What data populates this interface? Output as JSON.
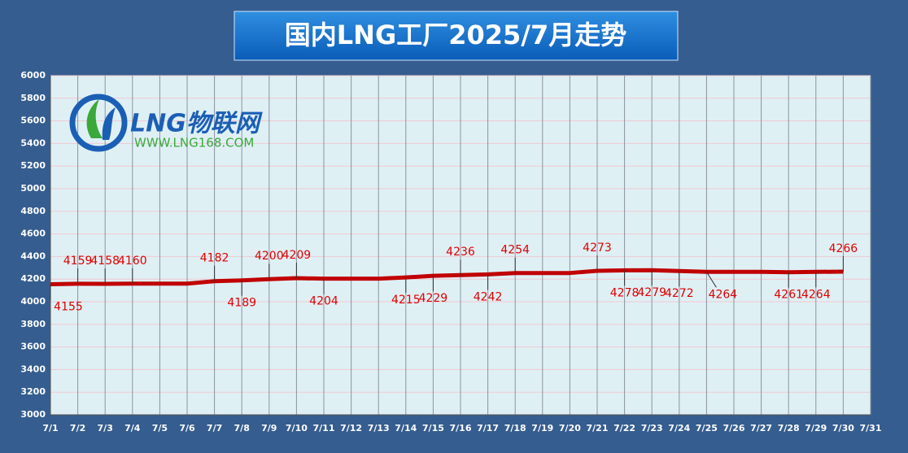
{
  "chart_data": {
    "type": "line",
    "title": "国内LNG工厂2025/7月走势",
    "logo": {
      "name": "LNG物联网",
      "url": "WWW.LNG168.COM"
    },
    "categories": [
      "7/1",
      "7/2",
      "7/3",
      "7/4",
      "7/5",
      "7/6",
      "7/7",
      "7/8",
      "7/9",
      "7/10",
      "7/11",
      "7/12",
      "7/13",
      "7/14",
      "7/15",
      "7/16",
      "7/17",
      "7/18",
      "7/19",
      "7/20",
      "7/21",
      "7/22",
      "7/23",
      "7/24",
      "7/25",
      "7/26",
      "7/27",
      "7/28",
      "7/29",
      "7/30",
      "7/31"
    ],
    "series": [
      {
        "color": "#c00000",
        "values": [
          4155,
          4159,
          4158,
          4160,
          4160,
          4160,
          4182,
          4189,
          4200,
          4209,
          4204,
          4204,
          4204,
          4215,
          4229,
          4236,
          4242,
          4254,
          4254,
          4254,
          4273,
          4278,
          4279,
          4272,
          4264,
          4264,
          4264,
          4261,
          4264,
          4266,
          null
        ],
        "value_labels": [
          "4155",
          "4159",
          "4158",
          "4160",
          null,
          null,
          "4182",
          "4189",
          "4200",
          "4209",
          "4204",
          null,
          null,
          "4215",
          "4229",
          "4236",
          "4242",
          "4254",
          null,
          null,
          "4273",
          "4278",
          "4279",
          "4272",
          "4264",
          null,
          null,
          "4261",
          "4264",
          "4266",
          null
        ]
      }
    ],
    "ylim": [
      3000,
      6000
    ],
    "yticks": [
      3000,
      3200,
      3400,
      3600,
      3800,
      4000,
      4200,
      4400,
      4600,
      4800,
      5000,
      5200,
      5400,
      5600,
      5800,
      6000
    ],
    "grid": true
  }
}
